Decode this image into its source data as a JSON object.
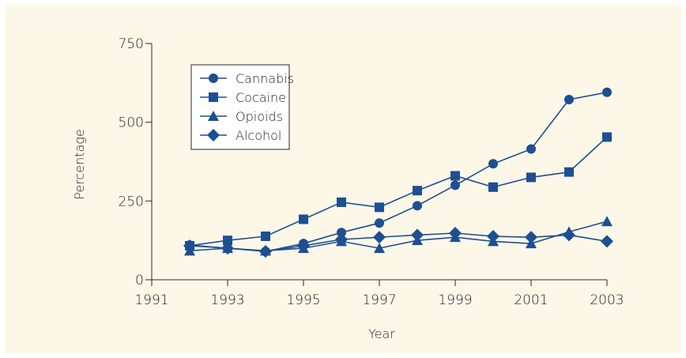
{
  "colors": {
    "background": "#fdf7e8",
    "series": "#1d4f91",
    "axis": "#2a2a2a",
    "text": "#222222"
  },
  "chart_data": {
    "type": "line",
    "title": "",
    "xlabel": "Year",
    "ylabel": "Percentage",
    "xlim": [
      1991,
      2003
    ],
    "ylim": [
      0,
      750
    ],
    "xticks": [
      1991,
      1993,
      1995,
      1997,
      1999,
      2001,
      2003
    ],
    "yticks": [
      0,
      250,
      500,
      750
    ],
    "grid": false,
    "legend_position": "top-left",
    "series": [
      {
        "name": "Cannabis",
        "marker": "circle",
        "x": [
          1992,
          1993,
          1994,
          1995,
          1996,
          1997,
          1998,
          1999,
          2000,
          2001,
          2002,
          2003
        ],
        "values": [
          110,
          100,
          90,
          115,
          150,
          180,
          235,
          300,
          368,
          415,
          572,
          595
        ]
      },
      {
        "name": "Cocaine",
        "marker": "square",
        "x": [
          1992,
          1993,
          1994,
          1995,
          1996,
          1997,
          1998,
          1999,
          2000,
          2001,
          2002,
          2003
        ],
        "values": [
          108,
          125,
          138,
          192,
          246,
          230,
          283,
          330,
          294,
          325,
          342,
          453
        ]
      },
      {
        "name": "Opioids",
        "marker": "triangle",
        "x": [
          1992,
          1993,
          1994,
          1995,
          1996,
          1997,
          1998,
          1999,
          2000,
          2001,
          2002,
          2003
        ],
        "values": [
          92,
          100,
          92,
          100,
          122,
          100,
          125,
          135,
          122,
          115,
          152,
          185
        ]
      },
      {
        "name": "Alcohol",
        "marker": "diamond",
        "x": [
          1992,
          1993,
          1994,
          1995,
          1996,
          1997,
          1998,
          1999,
          2000,
          2001,
          2002,
          2003
        ],
        "values": [
          108,
          100,
          90,
          108,
          128,
          135,
          142,
          148,
          138,
          135,
          142,
          122
        ]
      }
    ]
  }
}
